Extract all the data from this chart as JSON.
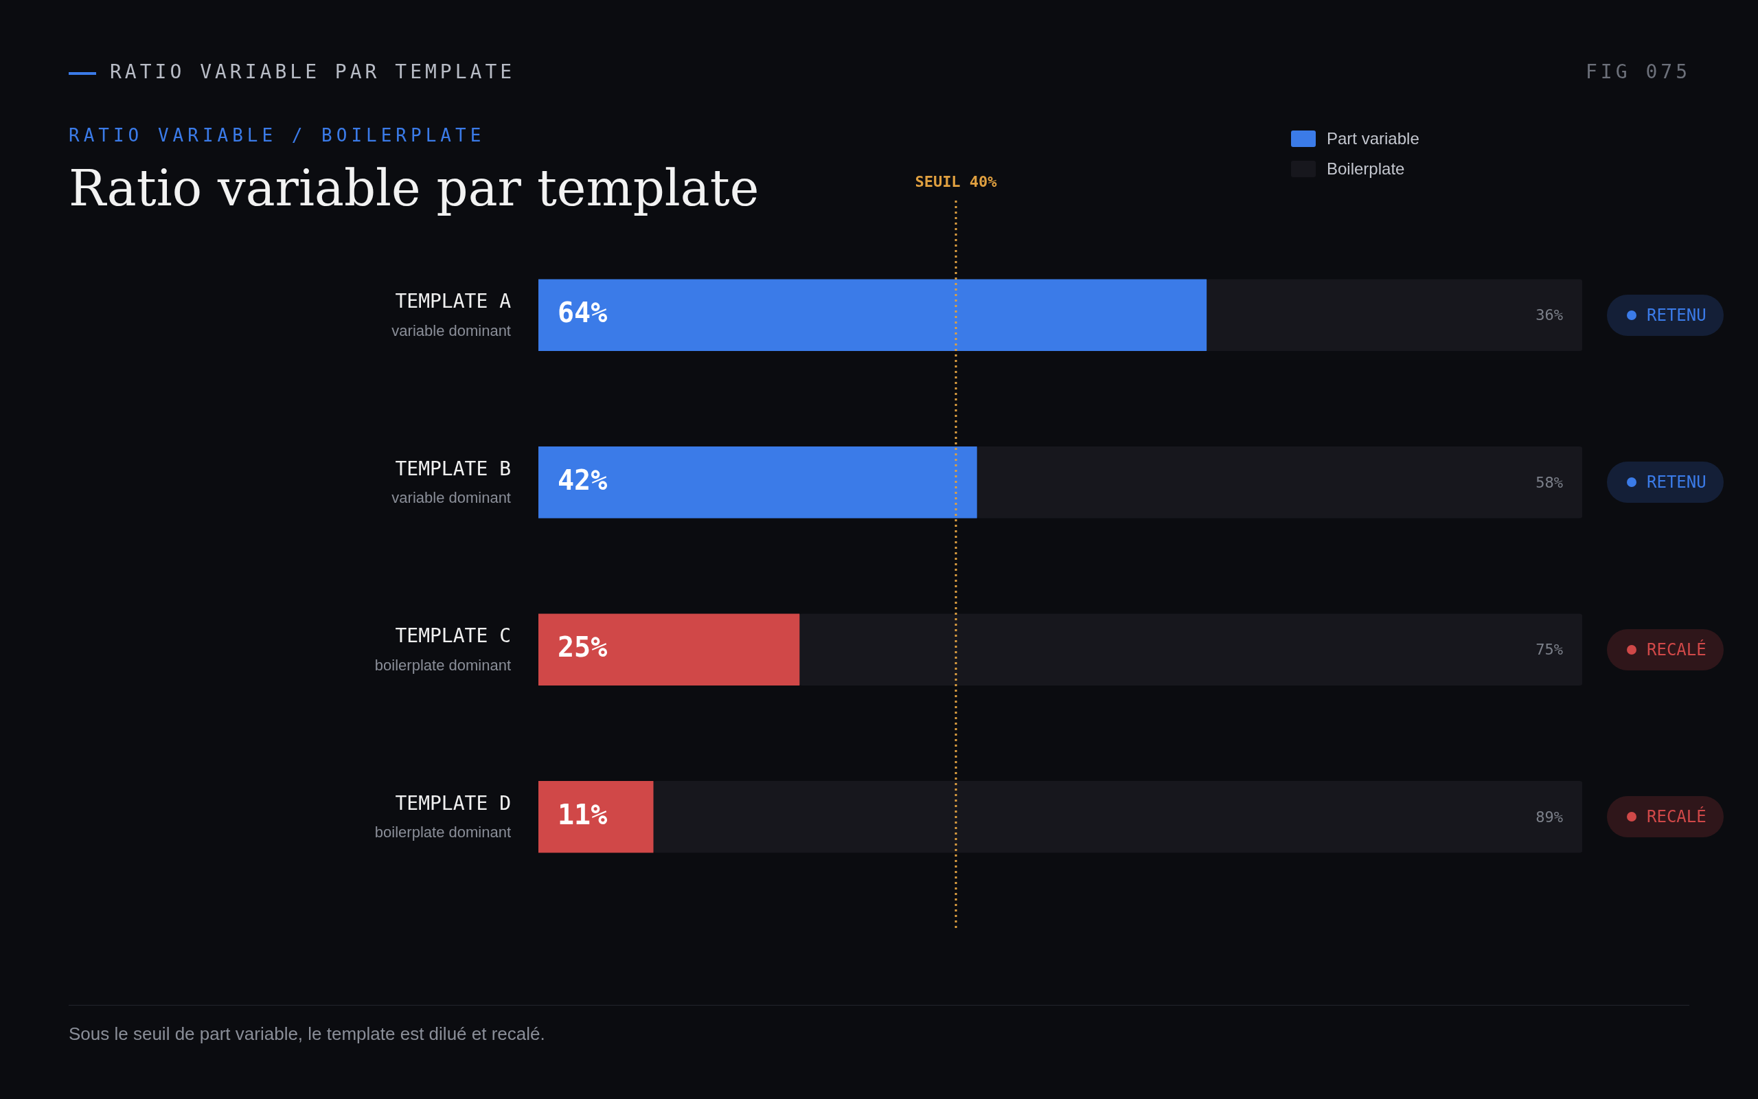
{
  "chart_data": {
    "type": "bar",
    "orientation": "horizontal",
    "stacked": true,
    "title": "Ratio variable par template",
    "subtitle": "RATIO VARIABLE / BOILERPLATE",
    "categories": [
      "TEMPLATE A",
      "TEMPLATE B",
      "TEMPLATE C",
      "TEMPLATE D"
    ],
    "series": [
      {
        "name": "Part variable",
        "color": "#3b7be8",
        "colors": [
          "#3b7be8",
          "#3b7be8",
          "#d04848",
          "#d04848"
        ],
        "values": [
          64,
          42,
          25,
          11
        ],
        "value_labels": [
          "64%",
          "42%",
          "25%",
          "11%"
        ]
      },
      {
        "name": "Boilerplate",
        "color": "#17171d",
        "values": [
          36,
          58,
          75,
          89
        ],
        "value_labels": [
          "36%",
          "58%",
          "75%",
          "89%"
        ]
      }
    ],
    "xlim": [
      0,
      100
    ],
    "ref_lines": [
      {
        "axis": "x",
        "value": 40,
        "label": "SEUIL 40%",
        "color": "#e0a040",
        "line_style": "dotted"
      }
    ],
    "annotations": [
      "RATIO VARIABLE PAR TEMPLATE",
      "FIG 075",
      "variable dominant",
      "RETENU",
      "variable dominant",
      "RETENU",
      "boilerplate dominant",
      "RECALÉ",
      "boilerplate dominant",
      "RECALÉ",
      "Sous le seuil de part variable, le template est dilué et recalé."
    ],
    "legend": "top right"
  }
}
